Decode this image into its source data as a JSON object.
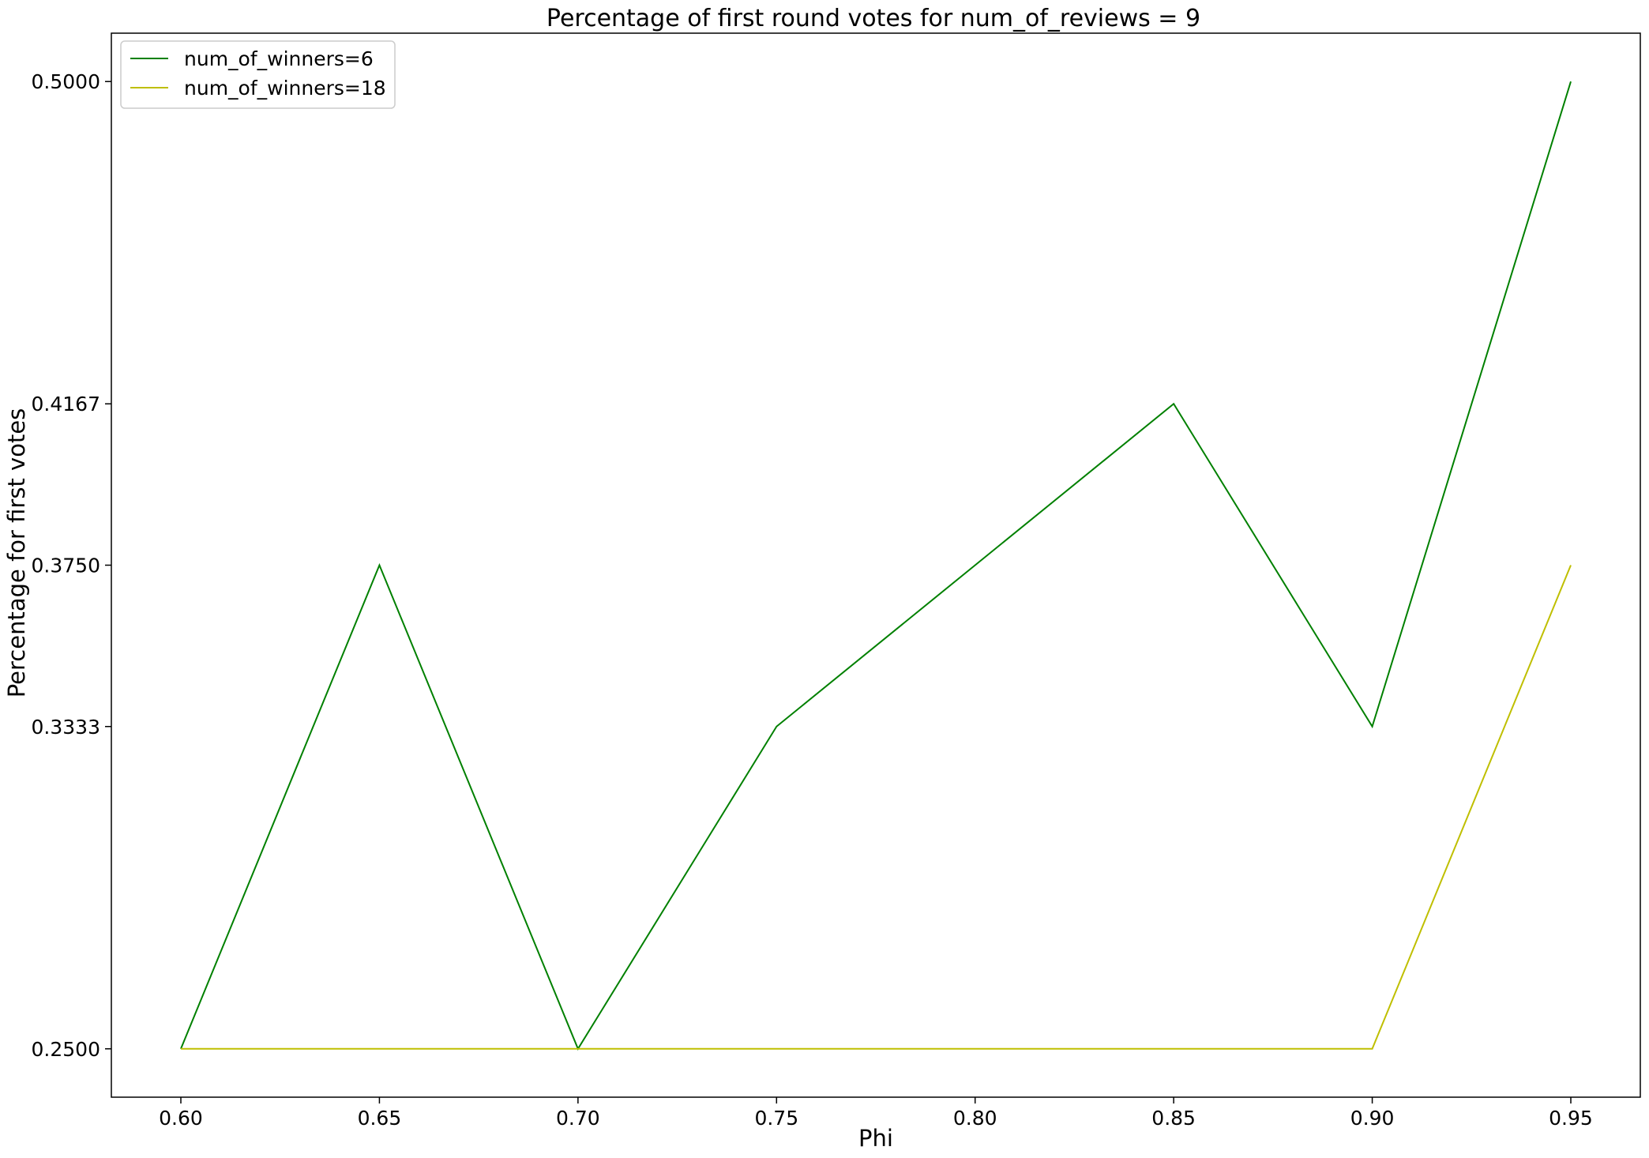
{
  "chart_data": {
    "type": "line",
    "title": "Percentage of first round votes for num_of_reviews = 9",
    "xlabel": "Phi",
    "ylabel": "Percentage for first votes",
    "x": [
      0.6,
      0.65,
      0.7,
      0.75,
      0.8,
      0.85,
      0.9,
      0.95
    ],
    "x_ticks": [
      "0.60",
      "0.65",
      "0.70",
      "0.75",
      "0.80",
      "0.85",
      "0.90",
      "0.95"
    ],
    "y_ticks": [
      "0.2500",
      "0.3333",
      "0.3750",
      "0.4167",
      "0.5000"
    ],
    "xlim": [
      0.5825,
      0.9675
    ],
    "ylim": [
      0.2375,
      0.5125
    ],
    "grid": false,
    "legend_position": "top-left",
    "series": [
      {
        "name": "num_of_winners=6",
        "color": "#008000",
        "values": [
          0.25,
          0.375,
          0.25,
          0.3333,
          0.375,
          0.4167,
          0.3333,
          0.5
        ]
      },
      {
        "name": "num_of_winners=18",
        "color": "#bfbf00",
        "values": [
          0.25,
          0.25,
          0.25,
          0.25,
          0.25,
          0.25,
          0.25,
          0.375
        ]
      }
    ]
  }
}
